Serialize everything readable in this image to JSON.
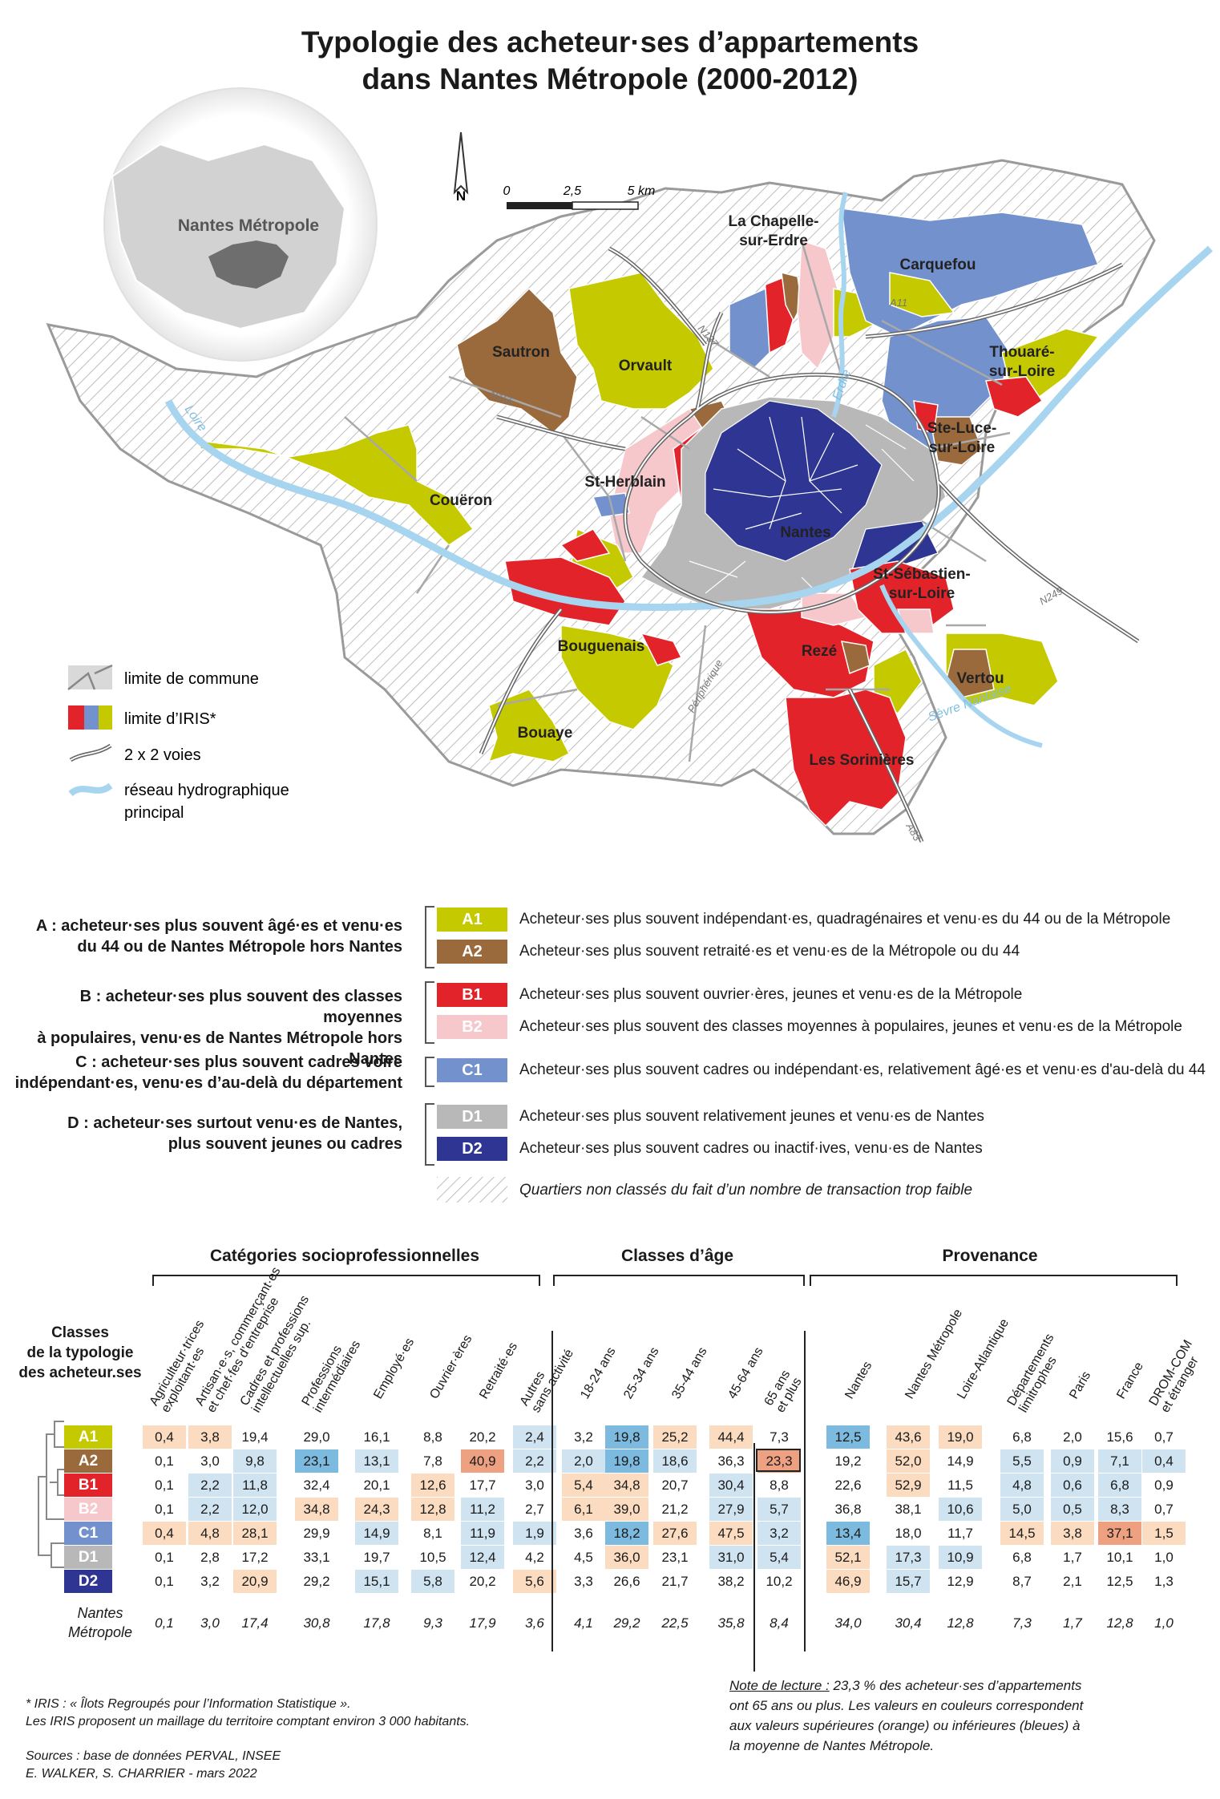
{
  "title_line1": "Typologie des acheteur·ses d’appartements",
  "title_line2": "dans Nantes Métropole (2000-2012)",
  "inset_label": "Nantes Métropole",
  "scale": {
    "north": "N",
    "t0": "0",
    "t1": "2,5",
    "t2": "5 km"
  },
  "cities": {
    "chapelle1": "La Chapelle-",
    "chapelle2": "sur-Erdre",
    "carquefou": "Carquefou",
    "sautron": "Sautron",
    "orvault": "Orvault",
    "thouare1": "Thouaré-",
    "thouare2": "sur-Loire",
    "steluce1": "Ste-Luce-",
    "steluce2": "sur-Loire",
    "coueron": "Couëron",
    "stherblain": "St-Herblain",
    "nantes": "Nantes",
    "stseb1": "St-Sébastien-",
    "stseb2": "sur-Loire",
    "bouguenais": "Bouguenais",
    "reze": "Rezé",
    "vertou": "Vertou",
    "bouaye": "Bouaye",
    "sorinieres": "Les Sorinières"
  },
  "rivers": {
    "loire": "Loire",
    "erdre": "Erdre",
    "sevre": "Sèvre Nantaise"
  },
  "roads": {
    "a11": "A11",
    "n137": "N137",
    "n165": "N165",
    "n249": "N249",
    "a83": "A83",
    "peri": "Périphérique"
  },
  "map_legend": {
    "commune": "limite de commune",
    "iris": "limite d’IRIS*",
    "voies": "2 x 2 voies",
    "hydro1": "réseau hydrographique",
    "hydro2": "principal"
  },
  "colors": {
    "A1": "#c5c900",
    "A2": "#9b6a3c",
    "B1": "#e3232a",
    "B2": "#f6c8cc",
    "C1": "#7391cd",
    "D1": "#b8b8b8",
    "D2": "#2e3592",
    "orange_light": "#fbdcc0",
    "orange_dark": "#eda181",
    "blue_light": "#cfe3f1",
    "blue_dark": "#7dbadf"
  },
  "typology": {
    "groups": [
      {
        "l1": "A : acheteur·ses plus souvent âgé·es et venu·es",
        "l2": "du 44 ou de Nantes Métropole hors Nantes"
      },
      {
        "l1": "B : acheteur·ses plus souvent des classes moyennes",
        "l2": "à populaires, venu·es de Nantes Métropole hors Nantes"
      },
      {
        "l1": "C : acheteur·ses plus souvent cadres voire",
        "l2": "indépendant·es, venu·es d’au-delà du département"
      },
      {
        "l1": "D : acheteur·ses surtout venu·es de Nantes,",
        "l2": "plus souvent jeunes ou cadres"
      }
    ],
    "classes": [
      {
        "code": "A1",
        "desc": "Acheteur·ses plus souvent indépendant·es, quadragénaires et venu·es du 44 ou de la Métropole"
      },
      {
        "code": "A2",
        "desc": "Acheteur·ses plus souvent retraité·es et venu·es de la Métropole ou du 44"
      },
      {
        "code": "B1",
        "desc": "Acheteur·ses plus souvent ouvrier·ères, jeunes et venu·es de la Métropole"
      },
      {
        "code": "B2",
        "desc": "Acheteur·ses plus souvent des classes moyennes à populaires, jeunes et venu·es de la Métropole"
      },
      {
        "code": "C1",
        "desc": "Acheteur·ses plus souvent cadres ou indépendant·es, relativement âgé·es et venu·es d'au-delà du 44"
      },
      {
        "code": "D1",
        "desc": "Acheteur·ses plus souvent relativement jeunes et venu·es de Nantes"
      },
      {
        "code": "D2",
        "desc": "Acheteur·ses plus souvent cadres ou inactif·ives, venu·es de Nantes"
      }
    ],
    "unclassified": "Quartiers non classés du fait d’un nombre de transaction trop faible"
  },
  "table": {
    "sections": [
      "Catégories socioprofessionnelles",
      "Classes d’âge",
      "Provenance"
    ],
    "row_header": [
      "Classes",
      "de la typologie",
      "des acheteur.ses"
    ],
    "columns": [
      "Agriculteur·trices\nexploitant·es",
      "Artisan·e·s, commerçant·es\net chef·fes d’entreprise",
      "Cadres et professions\nintellectuelles sup.",
      "Professions\nintermédiaires",
      "Employé·es",
      "Ouvrier·ères",
      "Retraité·es",
      "Autres\nsans activité",
      "18-24 ans",
      "25-34 ans",
      "35-44 ans",
      "45-64 ans",
      "65 ans\net plus",
      "Nantes",
      "Nantes Métropole",
      "Loire-Atlantique",
      "Départements\nlimitrophes",
      "Paris",
      "France",
      "DROM-COM\net étranger"
    ],
    "rows": [
      {
        "code": "A1",
        "values": [
          "0,4",
          "3,8",
          "19,4",
          "29,0",
          "16,1",
          "8,8",
          "20,2",
          "2,4",
          "3,2",
          "19,8",
          "25,2",
          "44,4",
          "7,3",
          "12,5",
          "43,6",
          "19,0",
          "6,8",
          "2,0",
          "15,6",
          "0,7"
        ],
        "shades": [
          "o",
          "o",
          "",
          "",
          "",
          "",
          "",
          "b",
          "",
          "B",
          "o",
          "o",
          "",
          "B",
          "o",
          "o",
          "",
          "",
          "",
          ""
        ]
      },
      {
        "code": "A2",
        "values": [
          "0,1",
          "3,0",
          "9,8",
          "23,1",
          "13,1",
          "7,8",
          "40,9",
          "2,2",
          "2,0",
          "19,8",
          "18,6",
          "36,3",
          "23,3",
          "19,2",
          "52,0",
          "14,9",
          "5,5",
          "0,9",
          "7,1",
          "0,4"
        ],
        "shades": [
          "",
          "",
          "b",
          "B",
          "b",
          "",
          "O",
          "b",
          "b",
          "B",
          "b",
          "",
          "O",
          "",
          "o",
          "",
          "b",
          "b",
          "b",
          "b"
        ]
      },
      {
        "code": "B1",
        "values": [
          "0,1",
          "2,2",
          "11,8",
          "32,4",
          "20,1",
          "12,6",
          "17,7",
          "3,0",
          "5,4",
          "34,8",
          "20,7",
          "30,4",
          "8,8",
          "22,6",
          "52,9",
          "11,5",
          "4,8",
          "0,6",
          "6,8",
          "0,9"
        ],
        "shades": [
          "",
          "b",
          "b",
          "",
          "",
          "o",
          "",
          "",
          "o",
          "o",
          "",
          "b",
          "",
          "",
          "o",
          "",
          "b",
          "b",
          "b",
          ""
        ]
      },
      {
        "code": "B2",
        "values": [
          "0,1",
          "2,2",
          "12,0",
          "34,8",
          "24,3",
          "12,8",
          "11,2",
          "2,7",
          "6,1",
          "39,0",
          "21,2",
          "27,9",
          "5,7",
          "36,8",
          "38,1",
          "10,6",
          "5,0",
          "0,5",
          "8,3",
          "0,7"
        ],
        "shades": [
          "",
          "b",
          "b",
          "o",
          "o",
          "o",
          "b",
          "",
          "o",
          "o",
          "",
          "b",
          "b",
          "",
          "",
          "b",
          "b",
          "b",
          "b",
          ""
        ]
      },
      {
        "code": "C1",
        "values": [
          "0,4",
          "4,8",
          "28,1",
          "29,9",
          "14,9",
          "8,1",
          "11,9",
          "1,9",
          "3,6",
          "18,2",
          "27,6",
          "47,5",
          "3,2",
          "13,4",
          "18,0",
          "11,7",
          "14,5",
          "3,8",
          "37,1",
          "1,5"
        ],
        "shades": [
          "o",
          "o",
          "o",
          "",
          "b",
          "",
          "b",
          "b",
          "",
          "B",
          "o",
          "o",
          "b",
          "B",
          "",
          "",
          "o",
          "o",
          "O",
          "o"
        ]
      },
      {
        "code": "D1",
        "values": [
          "0,1",
          "2,8",
          "17,2",
          "33,1",
          "19,7",
          "10,5",
          "12,4",
          "4,2",
          "4,5",
          "36,0",
          "23,1",
          "31,0",
          "5,4",
          "52,1",
          "17,3",
          "10,9",
          "6,8",
          "1,7",
          "10,1",
          "1,0"
        ],
        "shades": [
          "",
          "",
          "",
          "",
          "",
          "",
          "b",
          "",
          "",
          "o",
          "",
          "b",
          "b",
          "o",
          "b",
          "b",
          "",
          "",
          "",
          ""
        ]
      },
      {
        "code": "D2",
        "values": [
          "0,1",
          "3,2",
          "20,9",
          "29,2",
          "15,1",
          "5,8",
          "20,2",
          "5,6",
          "3,3",
          "26,6",
          "21,7",
          "38,2",
          "10,2",
          "46,9",
          "15,7",
          "12,9",
          "8,7",
          "2,1",
          "12,5",
          "1,3"
        ],
        "shades": [
          "",
          "",
          "o",
          "",
          "b",
          "b",
          "",
          "o",
          "",
          "",
          "",
          "",
          "",
          "o",
          "b",
          "",
          "",
          "",
          "",
          ""
        ]
      }
    ],
    "metro_label": [
      "Nantes",
      "Métropole"
    ],
    "metro_values": [
      "0,1",
      "3,0",
      "17,4",
      "30,8",
      "17,8",
      "9,3",
      "17,9",
      "3,6",
      "4,1",
      "29,2",
      "22,5",
      "35,8",
      "8,4",
      "34,0",
      "30,4",
      "12,8",
      "7,3",
      "1,7",
      "12,8",
      "1,0"
    ]
  },
  "reading_note": {
    "label": "Note de lecture :",
    "l1": " 23,3 % des acheteur·ses d’appartements",
    "l2": "ont 65 ans ou plus. Les valeurs en couleurs correspondent",
    "l3": "aux valeurs supérieures (orange) ou inférieures (bleues) à",
    "l4": "la moyenne de Nantes Métropole."
  },
  "footnotes": {
    "iris1": "* IRIS : « Îlots Regroupés pour l’Information Statistique ».",
    "iris2": "Les IRIS proposent un maillage du territoire comptant environ 3 000 habitants.",
    "sources": "Sources : base de données PERVAL, INSEE",
    "authors": "E. WALKER, S. CHARRIER - mars 2022"
  }
}
